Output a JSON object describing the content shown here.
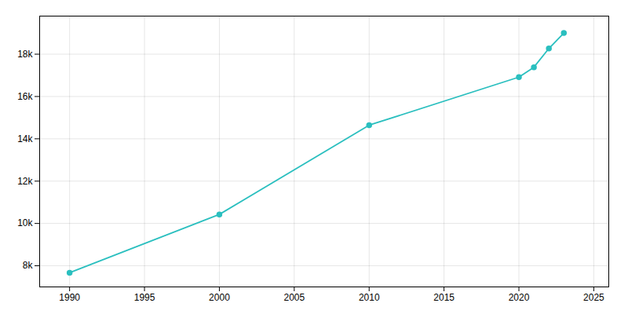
{
  "chart_data": {
    "type": "line",
    "x": [
      1990,
      2000,
      2010,
      2020,
      2021,
      2022,
      2023
    ],
    "values": [
      7670,
      10427,
      14644,
      16916,
      17382,
      18268,
      19000
    ],
    "color": "#2abfbf",
    "marker": "circle",
    "xlim": [
      1988,
      2026
    ],
    "xticks": [
      1990,
      1995,
      2000,
      2005,
      2010,
      2015,
      2020,
      2025
    ],
    "ylim": [
      7000,
      19800
    ],
    "yticks": [
      {
        "value": 8000,
        "label": "8k"
      },
      {
        "value": 10000,
        "label": "10k"
      },
      {
        "value": 12000,
        "label": "12k"
      },
      {
        "value": 14000,
        "label": "14k"
      },
      {
        "value": 16000,
        "label": "16k"
      },
      {
        "value": 18000,
        "label": "18k"
      }
    ],
    "grid": true
  }
}
